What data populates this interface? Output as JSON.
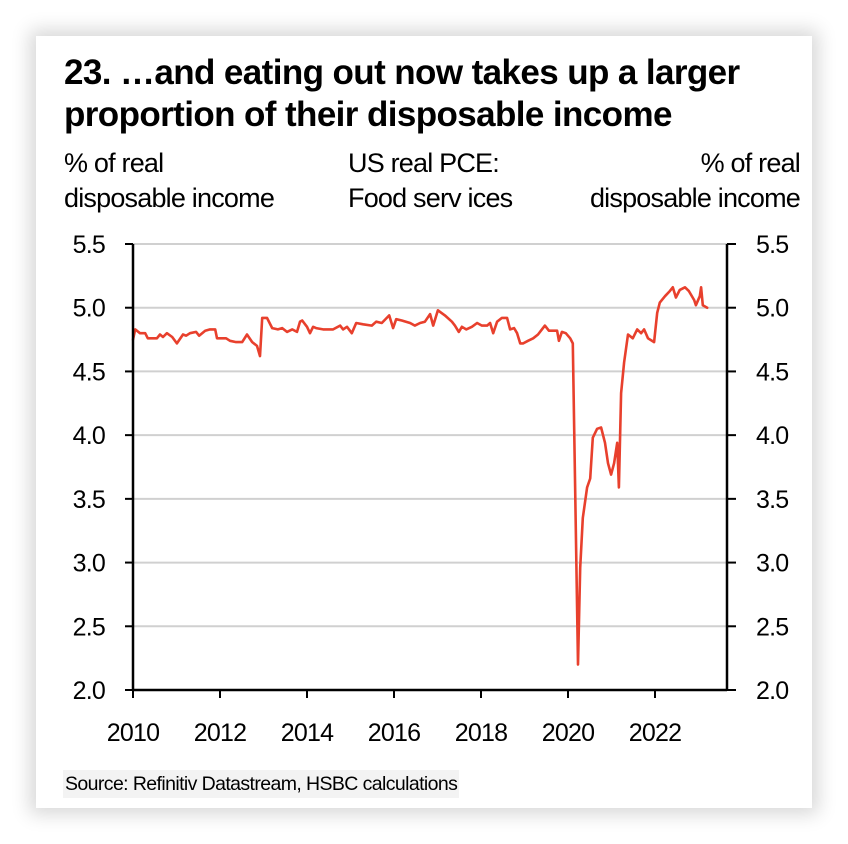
{
  "title": "23. …and eating out now takes up a larger proportion of their disposable income",
  "header": {
    "left": [
      "% of real",
      "disposable income"
    ],
    "center": [
      "US real PCE:",
      "Food serv ices"
    ],
    "right": [
      "% of real",
      "disposable income"
    ]
  },
  "source": "Source: Refinitiv Datastream, HSBC calculations",
  "colors": {
    "series": "#e8402d",
    "grid": "#d0d0d0",
    "axis": "#000000",
    "source_bg": "#f3f3f3"
  },
  "chart_data": {
    "type": "line",
    "title": "23. …and eating out now takes up a larger proportion of their disposable income",
    "xlabel": "",
    "ylabel": "% of real disposable income",
    "ylabel_right": "% of real disposable income",
    "xlim": [
      2010,
      2023.8
    ],
    "ylim": [
      2.0,
      5.5
    ],
    "y_ticks": [
      "5.5",
      "5.0",
      "4.5",
      "4.0",
      "3.5",
      "3.0",
      "2.5",
      "2.0"
    ],
    "y_tick_values": [
      5.5,
      5.0,
      4.5,
      4.0,
      3.5,
      3.0,
      2.5,
      2.0
    ],
    "x_ticks": [
      "2010",
      "2012",
      "2014",
      "2016",
      "2018",
      "2020",
      "2022"
    ],
    "x_tick_values": [
      2010,
      2012,
      2014,
      2016,
      2018,
      2020,
      2022
    ],
    "grid": true,
    "legend": "none",
    "series": [
      {
        "name": "US real PCE: Food services",
        "points": [
          [
            2010.0,
            4.75
          ],
          [
            2010.05,
            4.83
          ],
          [
            2010.16,
            4.8
          ],
          [
            2010.28,
            4.8
          ],
          [
            2010.34,
            4.76
          ],
          [
            2010.55,
            4.76
          ],
          [
            2010.62,
            4.79
          ],
          [
            2010.69,
            4.77
          ],
          [
            2010.78,
            4.8
          ],
          [
            2010.9,
            4.77
          ],
          [
            2011.01,
            4.72
          ],
          [
            2011.15,
            4.79
          ],
          [
            2011.22,
            4.78
          ],
          [
            2011.31,
            4.8
          ],
          [
            2011.45,
            4.81
          ],
          [
            2011.52,
            4.78
          ],
          [
            2011.66,
            4.82
          ],
          [
            2011.77,
            4.83
          ],
          [
            2011.89,
            4.83
          ],
          [
            2011.93,
            4.76
          ],
          [
            2012.14,
            4.76
          ],
          [
            2012.23,
            4.74
          ],
          [
            2012.37,
            4.73
          ],
          [
            2012.51,
            4.73
          ],
          [
            2012.62,
            4.79
          ],
          [
            2012.74,
            4.73
          ],
          [
            2012.85,
            4.7
          ],
          [
            2012.92,
            4.62
          ],
          [
            2012.97,
            4.92
          ],
          [
            2013.08,
            4.92
          ],
          [
            2013.2,
            4.84
          ],
          [
            2013.33,
            4.83
          ],
          [
            2013.43,
            4.84
          ],
          [
            2013.54,
            4.81
          ],
          [
            2013.66,
            4.83
          ],
          [
            2013.77,
            4.81
          ],
          [
            2013.84,
            4.89
          ],
          [
            2013.89,
            4.9
          ],
          [
            2014.0,
            4.85
          ],
          [
            2014.07,
            4.8
          ],
          [
            2014.14,
            4.85
          ],
          [
            2014.21,
            4.84
          ],
          [
            2014.37,
            4.83
          ],
          [
            2014.6,
            4.83
          ],
          [
            2014.76,
            4.86
          ],
          [
            2014.83,
            4.83
          ],
          [
            2014.92,
            4.85
          ],
          [
            2015.03,
            4.8
          ],
          [
            2015.13,
            4.88
          ],
          [
            2015.29,
            4.87
          ],
          [
            2015.49,
            4.86
          ],
          [
            2015.59,
            4.89
          ],
          [
            2015.72,
            4.88
          ],
          [
            2015.89,
            4.94
          ],
          [
            2015.98,
            4.84
          ],
          [
            2016.05,
            4.91
          ],
          [
            2016.18,
            4.9
          ],
          [
            2016.37,
            4.88
          ],
          [
            2016.48,
            4.86
          ],
          [
            2016.6,
            4.88
          ],
          [
            2016.71,
            4.89
          ],
          [
            2016.83,
            4.95
          ],
          [
            2016.9,
            4.86
          ],
          [
            2017.01,
            4.98
          ],
          [
            2017.17,
            4.94
          ],
          [
            2017.33,
            4.89
          ],
          [
            2017.4,
            4.86
          ],
          [
            2017.49,
            4.81
          ],
          [
            2017.56,
            4.85
          ],
          [
            2017.66,
            4.83
          ],
          [
            2017.79,
            4.85
          ],
          [
            2017.91,
            4.88
          ],
          [
            2018.02,
            4.86
          ],
          [
            2018.14,
            4.86
          ],
          [
            2018.21,
            4.88
          ],
          [
            2018.28,
            4.8
          ],
          [
            2018.37,
            4.89
          ],
          [
            2018.48,
            4.92
          ],
          [
            2018.6,
            4.92
          ],
          [
            2018.67,
            4.83
          ],
          [
            2018.76,
            4.84
          ],
          [
            2018.83,
            4.8
          ],
          [
            2018.9,
            4.72
          ],
          [
            2018.97,
            4.72
          ],
          [
            2019.08,
            4.74
          ],
          [
            2019.2,
            4.76
          ],
          [
            2019.31,
            4.79
          ],
          [
            2019.4,
            4.83
          ],
          [
            2019.47,
            4.86
          ],
          [
            2019.56,
            4.82
          ],
          [
            2019.75,
            4.82
          ],
          [
            2019.79,
            4.74
          ],
          [
            2019.86,
            4.81
          ],
          [
            2019.95,
            4.8
          ],
          [
            2020.05,
            4.76
          ],
          [
            2020.11,
            4.72
          ],
          [
            2020.23,
            2.2
          ],
          [
            2020.28,
            2.96
          ],
          [
            2020.34,
            3.35
          ],
          [
            2020.44,
            3.59
          ],
          [
            2020.51,
            3.66
          ],
          [
            2020.57,
            3.98
          ],
          [
            2020.67,
            4.05
          ],
          [
            2020.76,
            4.06
          ],
          [
            2020.85,
            3.94
          ],
          [
            2020.92,
            3.78
          ],
          [
            2020.99,
            3.69
          ],
          [
            2021.06,
            3.78
          ],
          [
            2021.13,
            3.94
          ],
          [
            2021.17,
            3.59
          ],
          [
            2021.22,
            4.33
          ],
          [
            2021.29,
            4.57
          ],
          [
            2021.38,
            4.79
          ],
          [
            2021.49,
            4.76
          ],
          [
            2021.59,
            4.83
          ],
          [
            2021.68,
            4.8
          ],
          [
            2021.75,
            4.83
          ],
          [
            2021.84,
            4.76
          ],
          [
            2021.98,
            4.73
          ],
          [
            2022.05,
            4.96
          ],
          [
            2022.11,
            5.04
          ],
          [
            2022.23,
            5.09
          ],
          [
            2022.34,
            5.13
          ],
          [
            2022.41,
            5.16
          ],
          [
            2022.48,
            5.08
          ],
          [
            2022.57,
            5.14
          ],
          [
            2022.69,
            5.16
          ],
          [
            2022.78,
            5.13
          ],
          [
            2022.9,
            5.06
          ],
          [
            2022.94,
            5.02
          ],
          [
            2023.03,
            5.09
          ],
          [
            2023.06,
            5.16
          ],
          [
            2023.1,
            5.02
          ],
          [
            2023.2,
            5.0
          ]
        ]
      }
    ]
  }
}
